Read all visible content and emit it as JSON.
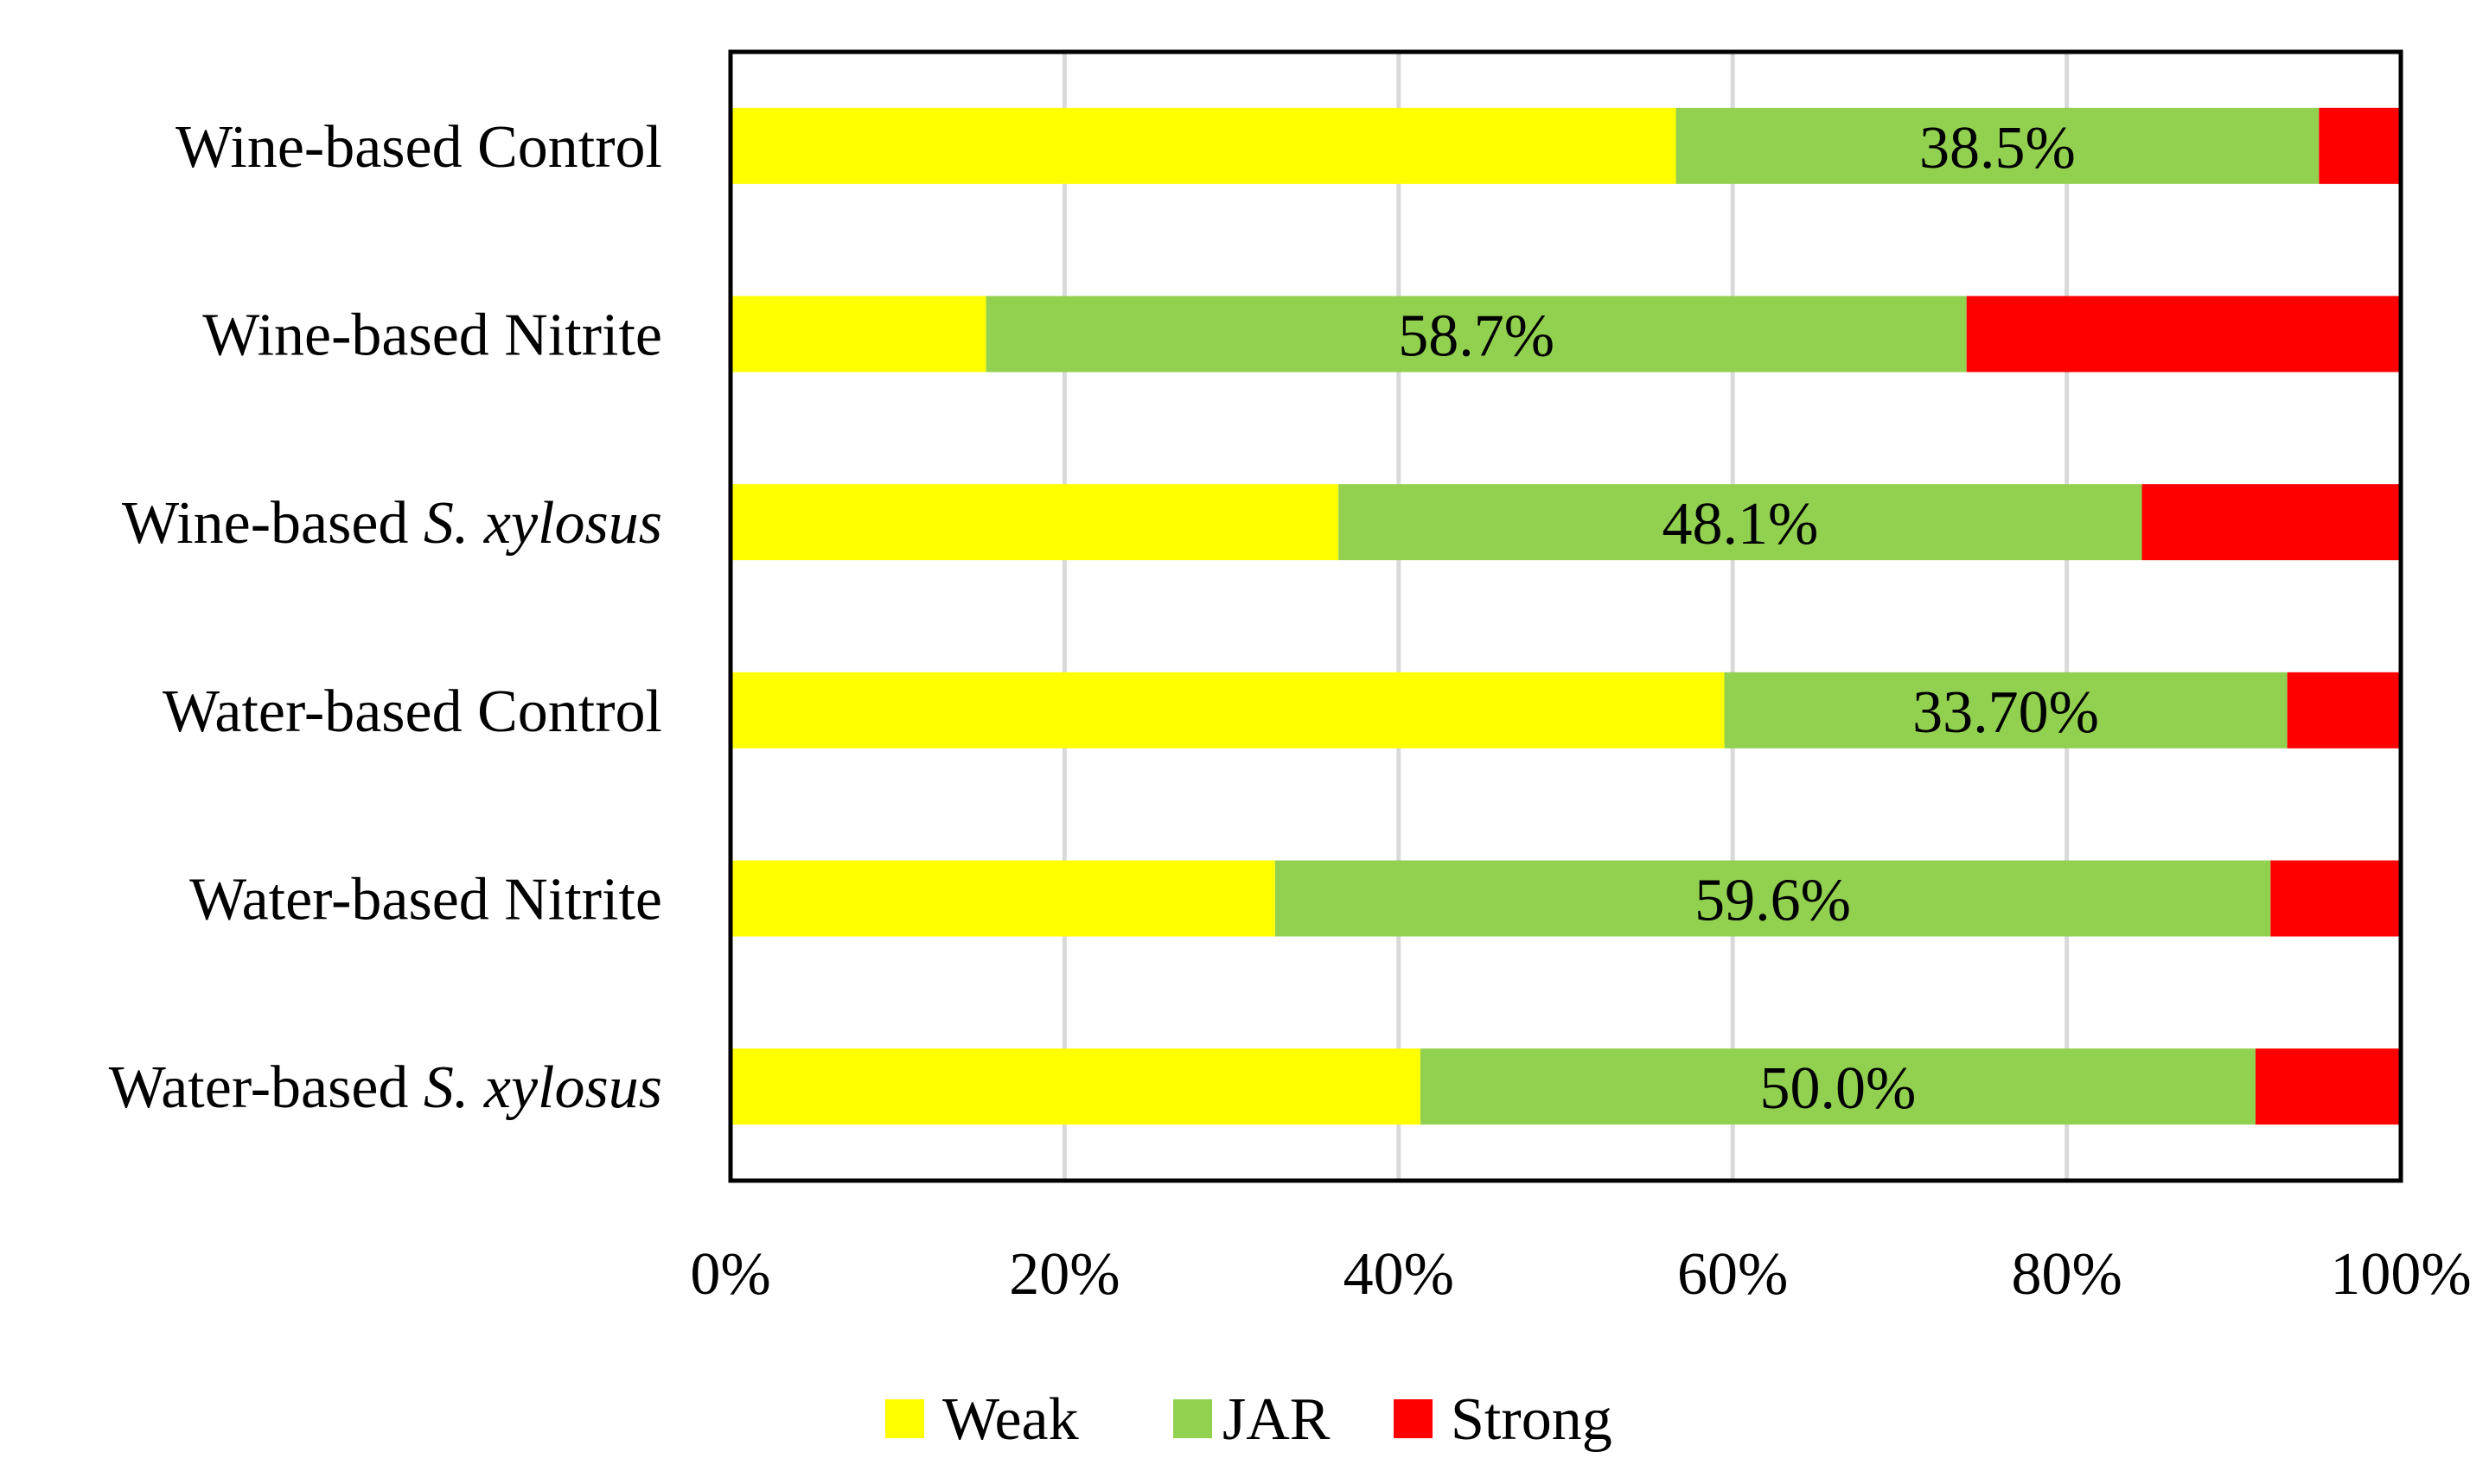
{
  "chart_data": {
    "type": "bar",
    "orientation": "horizontal",
    "stacked": "percent",
    "title": "",
    "xlabel": "",
    "ylabel": "",
    "xlim": [
      0,
      100
    ],
    "grid": true,
    "legend_position": "bottom",
    "categories": [
      "Wine-based Control",
      "Wine-based Nitrite",
      "Wine-based S. xylosus",
      "Water-based Control",
      "Water-based Nitrite",
      "Water-based S. xylosus"
    ],
    "category_parts": [
      {
        "plain": "Wine-based Control",
        "italic": ""
      },
      {
        "plain": "Wine-based Nitrite",
        "italic": ""
      },
      {
        "plain": "Wine-based ",
        "italic": "S. xylosus"
      },
      {
        "plain": "Water-based Control",
        "italic": ""
      },
      {
        "plain": "Water-based Nitrite",
        "italic": ""
      },
      {
        "plain": "Water-based ",
        "italic": "S. xylosus"
      }
    ],
    "series": [
      {
        "name": "Weak",
        "color": "#FFFF00",
        "values": [
          56.6,
          15.3,
          36.4,
          59.5,
          32.6,
          41.3
        ]
      },
      {
        "name": "JAR",
        "color": "#92D050",
        "values": [
          38.5,
          58.7,
          48.1,
          33.7,
          59.6,
          50.0
        ]
      },
      {
        "name": "Strong",
        "color": "#FF0000",
        "values": [
          4.9,
          26.0,
          15.5,
          6.8,
          7.8,
          8.7
        ]
      }
    ],
    "data_labels": [
      "38.5%",
      "58.7%",
      "48.1%",
      "33.70%",
      "59.6%",
      "50.0%"
    ],
    "data_label_series": "JAR",
    "x_ticks": [
      "0%",
      "20%",
      "40%",
      "60%",
      "80%",
      "100%"
    ]
  }
}
